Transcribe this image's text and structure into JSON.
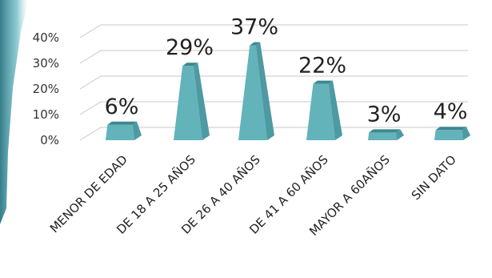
{
  "chart_data": {
    "type": "bar",
    "title": "",
    "xlabel": "",
    "ylabel": "",
    "ylim": [
      0,
      40
    ],
    "y_ticks": [
      "0%",
      "10%",
      "20%",
      "30%",
      "40%"
    ],
    "categories": [
      "MENOR DE EDAD",
      "DE 18 A 25 AÑOS",
      "DE 26 A 40 AÑOS",
      "DE 41 A 60 AÑOS",
      "MAYOR A 60AÑOS",
      "SIN DATO"
    ],
    "values": [
      6,
      29,
      37,
      22,
      3,
      4
    ],
    "data_labels": [
      "6%",
      "29%",
      "37%",
      "22%",
      "3%",
      "4%"
    ],
    "grid": true,
    "legend": "none",
    "colors": {
      "bar": "#63b3bb",
      "bar_dark": "#3d8890",
      "accent_stripe": "#2b8a9a"
    }
  }
}
